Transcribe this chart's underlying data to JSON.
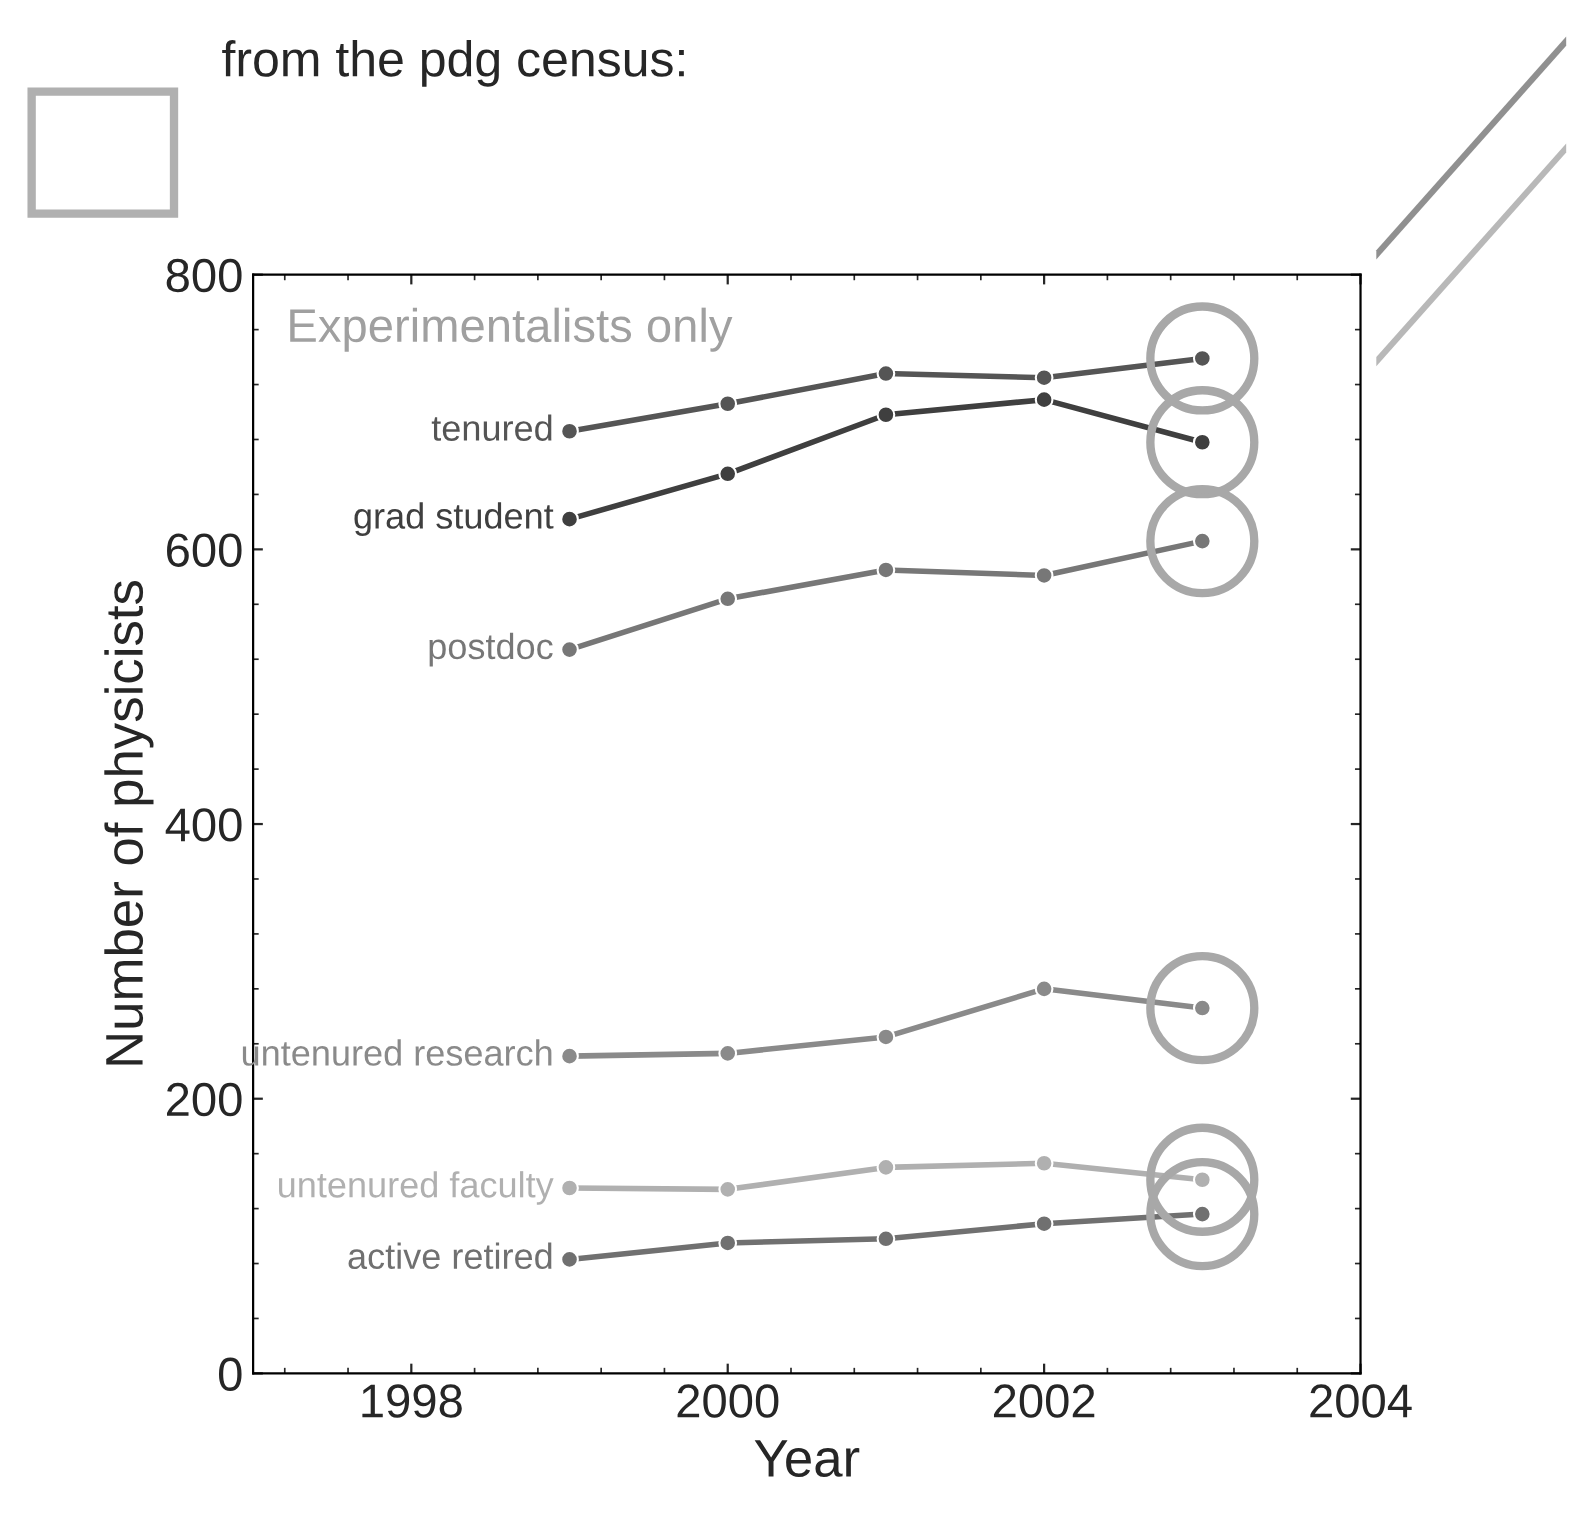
{
  "chart_data": {
    "type": "line",
    "title": "from the pdg census:",
    "subtitle": "Experimentalists only",
    "xlabel": "Year",
    "ylabel": "Number of physicists",
    "x": [
      1999,
      2000,
      2001,
      2002,
      2003
    ],
    "series": [
      {
        "name": "tenured",
        "color": "#555555",
        "values": [
          686,
          706,
          728,
          725,
          739
        ]
      },
      {
        "name": "grad student",
        "color": "#3f3f3f",
        "values": [
          622,
          655,
          698,
          709,
          678
        ]
      },
      {
        "name": "postdoc",
        "color": "#777777",
        "values": [
          527,
          564,
          585,
          581,
          606
        ]
      },
      {
        "name": "untenured research",
        "color": "#8a8a8a",
        "values": [
          231,
          233,
          245,
          280,
          266
        ]
      },
      {
        "name": "untenured faculty",
        "color": "#b0b0b0",
        "values": [
          135,
          134,
          150,
          153,
          141
        ]
      },
      {
        "name": "active retired",
        "color": "#707070",
        "values": [
          83,
          95,
          98,
          109,
          116
        ]
      }
    ],
    "xlim": [
      1997,
      2004
    ],
    "xticks": [
      1998,
      2000,
      2002,
      2004
    ],
    "ylim": [
      0,
      800
    ],
    "yticks": [
      0,
      200,
      400,
      600,
      800
    ],
    "marker": "circle",
    "line_style": "solid",
    "legend": false
  }
}
